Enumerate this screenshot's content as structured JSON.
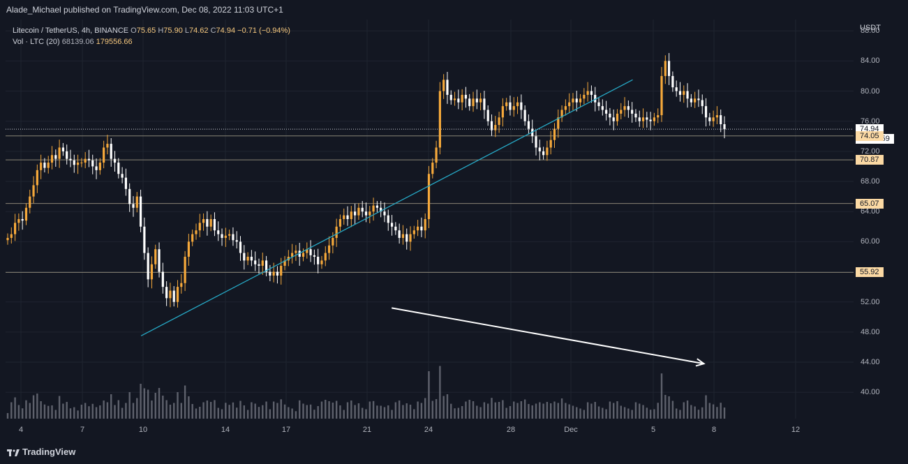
{
  "header": {
    "publisher_line": "Alade_Michael published on TradingView.com, Dec 08, 2022 11:03 UTC+1"
  },
  "legend": {
    "symbol": "Litecoin / TetherUS, 4h, BINANCE",
    "o_label": "O",
    "o_value": "75.65",
    "h_label": "H",
    "h_value": "75.90",
    "l_label": "L",
    "l_value": "74.62",
    "c_label": "C",
    "c_value": "74.94",
    "change": "−0.71 (−0.94%)",
    "vol_label": "Vol · LTC (20)",
    "vol_ma": "68139.06",
    "vol_value": "179556.66"
  },
  "axis": {
    "currency": "USDT",
    "y_ticks": [
      "88.00",
      "84.00",
      "80.00",
      "76.00",
      "72.00",
      "68.00",
      "64.00",
      "60.00",
      "56.00",
      "52.00",
      "48.00",
      "44.00",
      "40.00"
    ],
    "x_ticks": [
      "4",
      "7",
      "10",
      "14",
      "17",
      "21",
      "24",
      "28",
      "Dec",
      "5",
      "8",
      "12"
    ]
  },
  "tags": {
    "last_price": "74.94",
    "countdown": "01:56:59",
    "levels": [
      "74.05",
      "70.87",
      "65.07",
      "55.92"
    ]
  },
  "brand": {
    "name": "TradingView"
  },
  "colors": {
    "background": "#131722",
    "up_candle": "#f6a93b",
    "down_candle": "#ffffff",
    "trendline": "#26a9c6",
    "volume": "#787b86"
  },
  "chart_data": {
    "type": "candlestick",
    "title": "Litecoin / TetherUS, 4h, BINANCE",
    "ylim": [
      36.5,
      89.5
    ],
    "key_levels": [
      74.05,
      70.87,
      65.07,
      55.92
    ],
    "last_price": 74.94,
    "trendline": [
      [
        9.9,
        47.5
      ],
      [
        34.0,
        81.5
      ]
    ],
    "volume_trend_arrow": [
      [
        22.2,
        51.2
      ],
      [
        37.5,
        43.8
      ]
    ],
    "closes": [
      60.5,
      61.0,
      62.5,
      63.0,
      62.8,
      64.5,
      66.0,
      67.5,
      69.5,
      70.5,
      69.8,
      70.5,
      71.5,
      71.0,
      72.5,
      72.0,
      71.0,
      70.8,
      70.2,
      70.5,
      70.5,
      71.0,
      70.8,
      70.0,
      69.5,
      70.5,
      72.5,
      73.0,
      71.0,
      70.5,
      69.0,
      68.5,
      67.0,
      65.0,
      64.5,
      66.0,
      62.0,
      58.5,
      55.0,
      57.0,
      59.0,
      56.0,
      54.0,
      52.5,
      53.5,
      52.0,
      54.0,
      54.5,
      58.0,
      60.0,
      61.0,
      61.5,
      62.5,
      63.0,
      62.0,
      63.0,
      61.5,
      61.0,
      60.5,
      60.8,
      61.0,
      60.2,
      60.0,
      58.5,
      57.5,
      58.0,
      57.5,
      57.0,
      56.8,
      57.5,
      56.0,
      55.5,
      56.0,
      55.5,
      56.8,
      57.5,
      58.0,
      58.5,
      58.8,
      58.0,
      58.5,
      59.0,
      58.2,
      58.0,
      57.0,
      57.5,
      58.5,
      59.5,
      60.5,
      62.0,
      63.0,
      63.5,
      63.0,
      64.0,
      63.5,
      64.5,
      64.0,
      63.5,
      64.0,
      64.8,
      64.5,
      64.0,
      63.5,
      62.5,
      62.0,
      61.5,
      60.5,
      61.0,
      60.0,
      61.0,
      61.5,
      62.0,
      61.5,
      63.0,
      69.0,
      70.5,
      72.5,
      80.0,
      81.5,
      79.5,
      78.8,
      79.0,
      78.5,
      79.5,
      79.0,
      78.0,
      79.0,
      78.5,
      79.0,
      77.5,
      76.0,
      74.8,
      75.5,
      76.5,
      78.0,
      78.5,
      77.5,
      78.0,
      78.5,
      77.5,
      76.0,
      75.0,
      74.0,
      72.5,
      72.0,
      71.5,
      72.5,
      73.5,
      75.0,
      76.5,
      77.5,
      78.0,
      78.5,
      79.0,
      78.5,
      79.0,
      79.5,
      80.0,
      79.5,
      78.5,
      78.0,
      77.5,
      77.0,
      76.5,
      76.0,
      77.0,
      77.5,
      78.0,
      77.5,
      77.0,
      76.5,
      76.0,
      76.5,
      76.2,
      76.0,
      76.5,
      76.8,
      82.0,
      84.0,
      82.0,
      80.5,
      80.0,
      79.5,
      80.0,
      79.0,
      78.5,
      79.0,
      78.8,
      78.0,
      76.5,
      76.0,
      76.5,
      76.8,
      75.6,
      74.94
    ]
  }
}
